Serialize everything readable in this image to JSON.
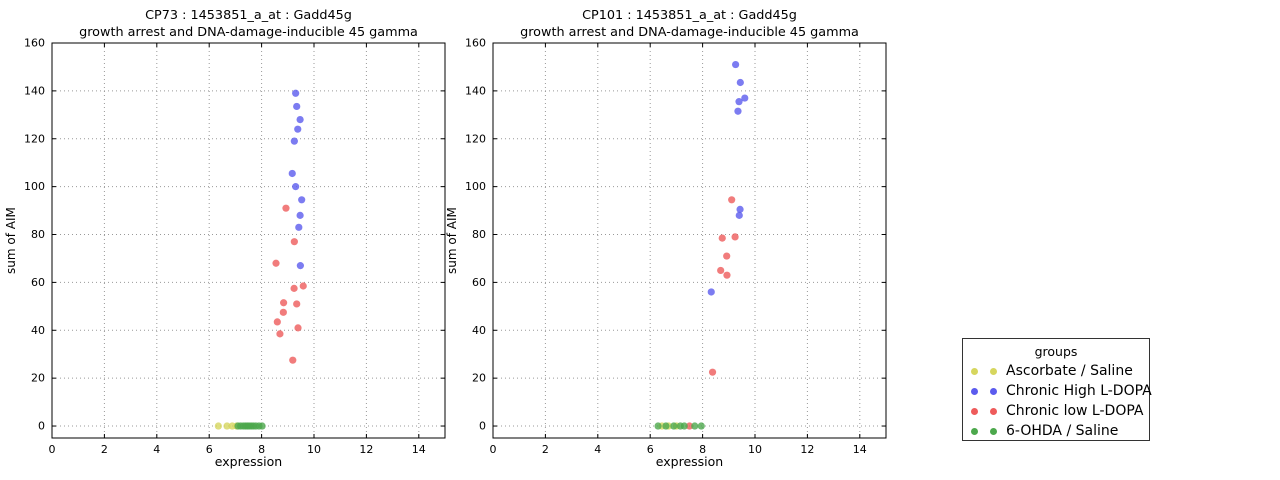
{
  "figure": {
    "background": "#ffffff"
  },
  "legend": {
    "title": "groups",
    "entries": [
      {
        "label": "Ascorbate / Saline",
        "color": "#d6d65e"
      },
      {
        "label": "Chronic High L-DOPA",
        "color": "#5b5bee"
      },
      {
        "label": "Chronic low L-DOPA",
        "color": "#ee5b5b"
      },
      {
        "label": "6-OHDA / Saline",
        "color": "#4ca84c"
      }
    ]
  },
  "chart_data": [
    {
      "type": "scatter",
      "title_line1": "CP73 : 1453851_a_at : Gadd45g",
      "title_line2": "growth arrest and DNA-damage-inducible 45 gamma",
      "xlabel": "expression",
      "ylabel": "sum of AIM",
      "xlim": [
        0,
        15
      ],
      "ylim": [
        -5,
        160
      ],
      "xticks": [
        0,
        2,
        4,
        6,
        8,
        10,
        12,
        14
      ],
      "yticks": [
        0,
        20,
        40,
        60,
        80,
        100,
        120,
        140,
        160
      ],
      "grid": true,
      "legend_position": "outside-right",
      "series": [
        {
          "name": "Ascorbate / Saline",
          "color": "#d6d65e",
          "points": [
            [
              6.35,
              0
            ],
            [
              6.68,
              0
            ],
            [
              6.88,
              0
            ],
            [
              7.05,
              0
            ]
          ]
        },
        {
          "name": "Chronic High L-DOPA",
          "color": "#5b5bee",
          "points": [
            [
              9.3,
              139
            ],
            [
              9.34,
              133.5
            ],
            [
              9.47,
              128
            ],
            [
              9.38,
              124
            ],
            [
              9.25,
              119
            ],
            [
              9.17,
              105.5
            ],
            [
              9.3,
              100
            ],
            [
              9.53,
              94.5
            ],
            [
              9.47,
              88
            ],
            [
              9.42,
              83
            ],
            [
              9.48,
              67
            ]
          ]
        },
        {
          "name": "Chronic low L-DOPA",
          "color": "#ee5b5b",
          "points": [
            [
              8.93,
              91
            ],
            [
              9.25,
              77
            ],
            [
              8.55,
              68
            ],
            [
              9.59,
              58.5
            ],
            [
              9.24,
              57.5
            ],
            [
              8.84,
              51.5
            ],
            [
              9.34,
              51
            ],
            [
              8.83,
              47.5
            ],
            [
              8.6,
              43.5
            ],
            [
              9.39,
              41
            ],
            [
              8.7,
              38.5
            ],
            [
              9.19,
              27.5
            ]
          ]
        },
        {
          "name": "6-OHDA / Saline",
          "color": "#4ca84c",
          "points": [
            [
              7.1,
              0
            ],
            [
              7.2,
              0
            ],
            [
              7.3,
              0
            ],
            [
              7.38,
              0
            ],
            [
              7.45,
              0
            ],
            [
              7.52,
              0
            ],
            [
              7.6,
              0
            ],
            [
              7.68,
              0
            ],
            [
              7.78,
              0
            ],
            [
              7.9,
              0
            ],
            [
              8.02,
              0
            ]
          ]
        }
      ]
    },
    {
      "type": "scatter",
      "title_line1": "CP101 : 1453851_a_at : Gadd45g",
      "title_line2": "growth arrest and DNA-damage-inducible 45 gamma",
      "xlabel": "expression",
      "ylabel": "sum of AIM",
      "xlim": [
        0,
        15
      ],
      "ylim": [
        -5,
        160
      ],
      "xticks": [
        0,
        2,
        4,
        6,
        8,
        10,
        12,
        14
      ],
      "yticks": [
        0,
        20,
        40,
        60,
        80,
        100,
        120,
        140,
        160
      ],
      "grid": true,
      "series": [
        {
          "name": "Ascorbate / Saline",
          "color": "#d6d65e",
          "points": [
            [
              6.45,
              0
            ],
            [
              6.7,
              0
            ],
            [
              7.0,
              0
            ]
          ]
        },
        {
          "name": "Chronic High L-DOPA",
          "color": "#5b5bee",
          "points": [
            [
              9.26,
              151
            ],
            [
              9.44,
              143.5
            ],
            [
              9.61,
              137
            ],
            [
              9.39,
              135.5
            ],
            [
              9.35,
              131.5
            ],
            [
              9.43,
              90.5
            ],
            [
              9.4,
              88
            ],
            [
              8.33,
              56
            ]
          ]
        },
        {
          "name": "Chronic low L-DOPA",
          "color": "#ee5b5b",
          "points": [
            [
              9.11,
              94.5
            ],
            [
              8.75,
              78.5
            ],
            [
              9.24,
              79
            ],
            [
              8.92,
              71
            ],
            [
              8.69,
              65
            ],
            [
              8.93,
              63
            ],
            [
              8.38,
              22.5
            ],
            [
              7.5,
              0
            ]
          ]
        },
        {
          "name": "6-OHDA / Saline",
          "color": "#4ca84c",
          "points": [
            [
              6.3,
              0
            ],
            [
              6.6,
              0
            ],
            [
              6.9,
              0
            ],
            [
              7.15,
              0
            ],
            [
              7.3,
              0
            ],
            [
              7.7,
              0
            ],
            [
              7.95,
              0
            ]
          ]
        }
      ]
    }
  ]
}
